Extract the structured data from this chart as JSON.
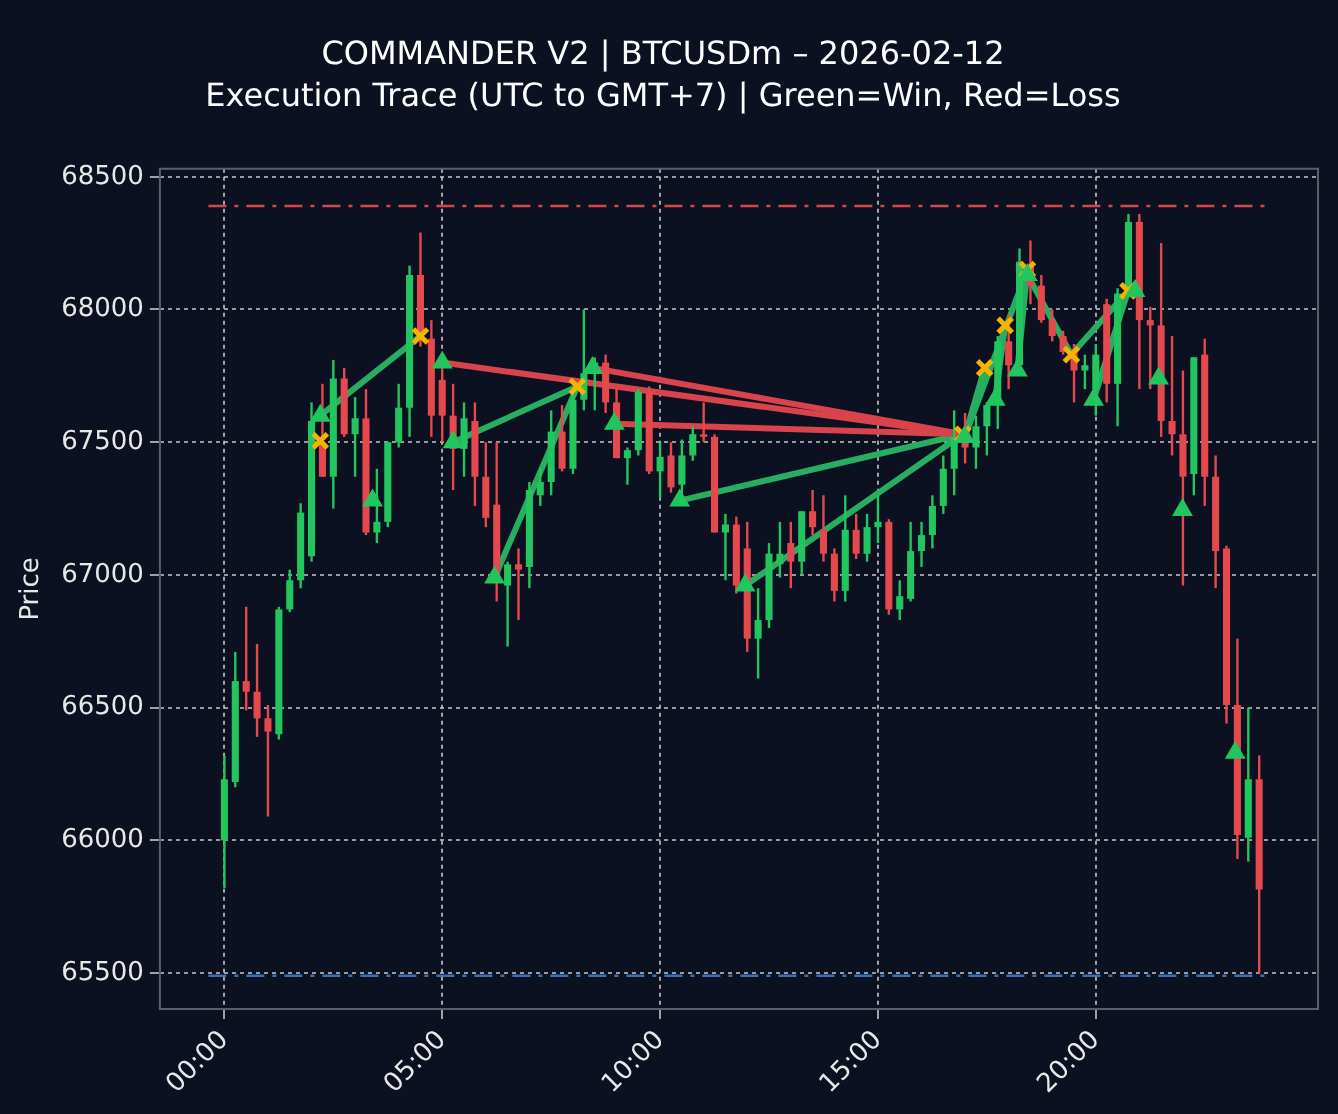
{
  "chart_data": {
    "type": "candlestick",
    "title": "COMMANDER V2 | BTCUSDm – 2026-02-12",
    "subtitle": "Execution Trace (UTC to GMT+7) | Green=Win, Red=Loss",
    "ylabel": "Price",
    "x": [
      0,
      0.25,
      0.5,
      0.75,
      1,
      1.25,
      1.5,
      1.75,
      2,
      2.25,
      2.5,
      2.75,
      3,
      3.25,
      3.5,
      3.75,
      4,
      4.25,
      4.5,
      4.75,
      5,
      5.25,
      5.5,
      5.75,
      6,
      6.25,
      6.5,
      6.75,
      7,
      7.25,
      7.5,
      7.75,
      8,
      8.25,
      8.5,
      8.75,
      9,
      9.25,
      9.5,
      9.75,
      10,
      10.25,
      10.5,
      10.75,
      11,
      11.25,
      11.5,
      11.75,
      12,
      12.25,
      12.5,
      12.75,
      13,
      13.25,
      13.5,
      13.75,
      14,
      14.25,
      14.5,
      14.75,
      15,
      15.25,
      15.5,
      15.75,
      16,
      16.25,
      16.5,
      16.75,
      17,
      17.25,
      17.5,
      17.75,
      18,
      18.25,
      18.5,
      18.75,
      19,
      19.25,
      19.5,
      19.75,
      20,
      20.25,
      20.5,
      20.75,
      21,
      21.25,
      21.5,
      21.75,
      22,
      22.25,
      22.5,
      22.75,
      23,
      23.25,
      23.5,
      23.75
    ],
    "ohlc": [
      [
        66000,
        66320,
        65820,
        66230
      ],
      [
        66220,
        66710,
        66200,
        66600
      ],
      [
        66600,
        66880,
        66490,
        66560
      ],
      [
        66560,
        66740,
        66390,
        66460
      ],
      [
        66460,
        66510,
        66090,
        66410
      ],
      [
        66400,
        66880,
        66380,
        66870
      ],
      [
        66870,
        67020,
        66860,
        66980
      ],
      [
        66980,
        67270,
        66950,
        67235
      ],
      [
        67070,
        67650,
        67050,
        67580
      ],
      [
        67500,
        67720,
        67370,
        67370
      ],
      [
        67370,
        67810,
        67250,
        67740
      ],
      [
        67740,
        67780,
        67520,
        67530
      ],
      [
        67530,
        67670,
        67370,
        67590
      ],
      [
        67590,
        67700,
        67150,
        67160
      ],
      [
        67160,
        67400,
        67120,
        67200
      ],
      [
        67200,
        67500,
        67180,
        67500
      ],
      [
        67500,
        67720,
        67480,
        67630
      ],
      [
        67630,
        68165,
        67520,
        68130
      ],
      [
        68130,
        68290,
        67860,
        67890
      ],
      [
        67890,
        67960,
        67520,
        67600
      ],
      [
        67735,
        67780,
        67500,
        67600
      ],
      [
        67600,
        67720,
        67320,
        67475
      ],
      [
        67475,
        67650,
        67370,
        67590
      ],
      [
        67580,
        67650,
        67260,
        67370
      ],
      [
        67370,
        67500,
        67180,
        67215
      ],
      [
        67265,
        67500,
        66900,
        66980
      ],
      [
        66960,
        67050,
        66730,
        67040
      ],
      [
        67040,
        67100,
        66830,
        67020
      ],
      [
        67030,
        67350,
        66950,
        67320
      ],
      [
        67300,
        67400,
        67260,
        67350
      ],
      [
        67350,
        67620,
        67300,
        67540
      ],
      [
        67540,
        67640,
        67390,
        67400
      ],
      [
        67400,
        67700,
        67380,
        67660
      ],
      [
        67660,
        68000,
        67620,
        67760
      ],
      [
        67760,
        67820,
        67620,
        67800
      ],
      [
        67800,
        67830,
        67610,
        67650
      ],
      [
        67650,
        67700,
        67440,
        67440
      ],
      [
        67440,
        67480,
        67340,
        67470
      ],
      [
        67470,
        67700,
        67450,
        67690
      ],
      [
        67690,
        67710,
        67380,
        67390
      ],
      [
        67390,
        67500,
        67290,
        67445
      ],
      [
        67450,
        67500,
        67310,
        67330
      ],
      [
        67340,
        67510,
        67300,
        67450
      ],
      [
        67450,
        67560,
        67430,
        67530
      ],
      [
        67530,
        67650,
        67500,
        67520
      ],
      [
        67520,
        67530,
        67160,
        67160
      ],
      [
        67160,
        67230,
        66980,
        67190
      ],
      [
        67190,
        67220,
        66930,
        66960
      ],
      [
        67100,
        67200,
        66710,
        66760
      ],
      [
        66760,
        66950,
        66610,
        66830
      ],
      [
        66830,
        67120,
        66800,
        67080
      ],
      [
        67040,
        67200,
        66990,
        67080
      ],
      [
        67120,
        67200,
        66950,
        67050
      ],
      [
        67050,
        67240,
        67000,
        67240
      ],
      [
        67240,
        67320,
        67150,
        67180
      ],
      [
        67170,
        67300,
        67050,
        67080
      ],
      [
        67080,
        67100,
        66900,
        66940
      ],
      [
        66940,
        67300,
        66900,
        67170
      ],
      [
        67170,
        67230,
        67060,
        67080
      ],
      [
        67080,
        67230,
        67050,
        67180
      ],
      [
        67180,
        67300,
        67120,
        67200
      ],
      [
        67200,
        67210,
        66850,
        66870
      ],
      [
        66870,
        66980,
        66830,
        66920
      ],
      [
        66910,
        67200,
        66900,
        67090
      ],
      [
        67090,
        67200,
        67030,
        67150
      ],
      [
        67150,
        67300,
        67100,
        67260
      ],
      [
        67260,
        67450,
        67230,
        67400
      ],
      [
        67400,
        67620,
        67300,
        67520
      ],
      [
        67520,
        67610,
        67420,
        67480
      ],
      [
        67480,
        67600,
        67400,
        67560
      ],
      [
        67560,
        67650,
        67450,
        67640
      ],
      [
        67640,
        67900,
        67550,
        67880
      ],
      [
        67880,
        67980,
        67700,
        67790
      ],
      [
        67790,
        68230,
        67780,
        68180
      ],
      [
        68170,
        68260,
        68020,
        68090
      ],
      [
        68090,
        68130,
        67950,
        67960
      ],
      [
        67960,
        68000,
        67880,
        67900
      ],
      [
        67900,
        67920,
        67830,
        67840
      ],
      [
        67840,
        67870,
        67650,
        67770
      ],
      [
        67770,
        67830,
        67700,
        67790
      ],
      [
        67700,
        67870,
        67600,
        67830
      ],
      [
        68020,
        68040,
        67650,
        67720
      ],
      [
        67720,
        68080,
        67560,
        68060
      ],
      [
        68060,
        68360,
        68050,
        68330
      ],
      [
        68330,
        68360,
        67700,
        67960
      ],
      [
        67960,
        68010,
        67700,
        67940
      ],
      [
        67940,
        68250,
        67520,
        67580
      ],
      [
        67580,
        67900,
        67450,
        67530
      ],
      [
        67530,
        67770,
        66960,
        67370
      ],
      [
        67380,
        67820,
        67300,
        67820
      ],
      [
        67830,
        67890,
        67260,
        67370
      ],
      [
        67370,
        67450,
        66950,
        67090
      ],
      [
        67100,
        67110,
        66440,
        66510
      ],
      [
        66510,
        66760,
        65930,
        66020
      ],
      [
        66010,
        66500,
        65920,
        66230
      ],
      [
        66230,
        66320,
        65500,
        65815
      ]
    ],
    "series": [
      {
        "type": "line",
        "color": "#27ae60",
        "x": [
          2.2,
          4.5
        ],
        "values": [
          67600,
          67900
        ]
      },
      {
        "type": "line",
        "color": "#d9434b",
        "x": [
          5.0,
          16.95
        ],
        "values": [
          67800,
          67530
        ]
      },
      {
        "type": "line",
        "color": "#27ae60",
        "x": [
          5.25,
          8.1
        ],
        "values": [
          67500,
          67710
        ]
      },
      {
        "type": "line",
        "color": "#27ae60",
        "x": [
          6.2,
          8.1
        ],
        "values": [
          66990,
          67710
        ]
      },
      {
        "type": "line",
        "color": "#d9434b",
        "x": [
          8.45,
          16.95
        ],
        "values": [
          67780,
          67530
        ]
      },
      {
        "type": "line",
        "color": "#d9434b",
        "x": [
          8.95,
          16.95
        ],
        "values": [
          67570,
          67530
        ]
      },
      {
        "type": "line",
        "color": "#27ae60",
        "x": [
          10.45,
          16.95
        ],
        "values": [
          67280,
          67530
        ]
      },
      {
        "type": "line",
        "color": "#27ae60",
        "x": [
          11.95,
          16.95
        ],
        "values": [
          66960,
          67530
        ]
      },
      {
        "type": "line",
        "color": "#27ae60",
        "x": [
          16.99,
          17.45
        ],
        "values": [
          67520,
          67780
        ]
      },
      {
        "type": "line",
        "color": "#27ae60",
        "x": [
          16.99,
          18.43
        ],
        "values": [
          67520,
          68150
        ]
      },
      {
        "type": "line",
        "color": "#27ae60",
        "x": [
          17.69,
          17.92
        ],
        "values": [
          67660,
          67940
        ]
      },
      {
        "type": "line",
        "color": "#27ae60",
        "x": [
          18.2,
          18.43
        ],
        "values": [
          67770,
          68150
        ]
      },
      {
        "type": "line",
        "color": "#27ae60",
        "x": [
          18.43,
          19.44
        ],
        "values": [
          68130,
          67830
        ]
      },
      {
        "type": "line",
        "color": "#27ae60",
        "x": [
          19.44,
          20.74
        ],
        "values": [
          67830,
          68070
        ]
      },
      {
        "type": "line",
        "color": "#27ae60",
        "x": [
          19.95,
          20.74
        ],
        "values": [
          67660,
          68070
        ]
      },
      {
        "type": "scatter",
        "marker": "triangle",
        "color": "#22c55e",
        "x": [
          2.2,
          3.4,
          5.0,
          5.25,
          6.2,
          8.45,
          8.95,
          10.45,
          11.95,
          16.99,
          17.69,
          18.2,
          18.43,
          19.95,
          20.9,
          21.44,
          21.99,
          23.2
        ],
        "values": [
          67600,
          67280,
          67800,
          67500,
          66990,
          67780,
          67570,
          67280,
          66960,
          67520,
          67660,
          67770,
          68130,
          67660,
          68070,
          67740,
          67245,
          66330
        ]
      },
      {
        "type": "scatter",
        "marker": "cross",
        "color": "#f5b400",
        "x": [
          2.2,
          4.5,
          8.1,
          16.95,
          17.45,
          17.92,
          18.43,
          19.44,
          20.74
        ],
        "values": [
          67505,
          67900,
          67710,
          67530,
          67780,
          67940,
          68150,
          67830,
          68070
        ]
      }
    ],
    "xlim": [
      -1.48,
      25.1
    ],
    "xticks": [
      {
        "value": 0,
        "label": "00:00"
      },
      {
        "value": 5,
        "label": "05:00"
      },
      {
        "value": 10,
        "label": "10:00"
      },
      {
        "value": 15,
        "label": "15:00"
      },
      {
        "value": 20,
        "label": "20:00"
      }
    ],
    "ylim": [
      65365,
      68530
    ],
    "yticks": [
      65500,
      66000,
      66500,
      67000,
      67500,
      68000,
      68500
    ],
    "grid": true,
    "ref_lines": [
      {
        "axis": "y",
        "value": 68390,
        "color": "#d9434b",
        "line_style": "dashed"
      },
      {
        "axis": "y",
        "value": 65490,
        "color": "#3b6fb6",
        "line_style": "dashed"
      }
    ]
  }
}
